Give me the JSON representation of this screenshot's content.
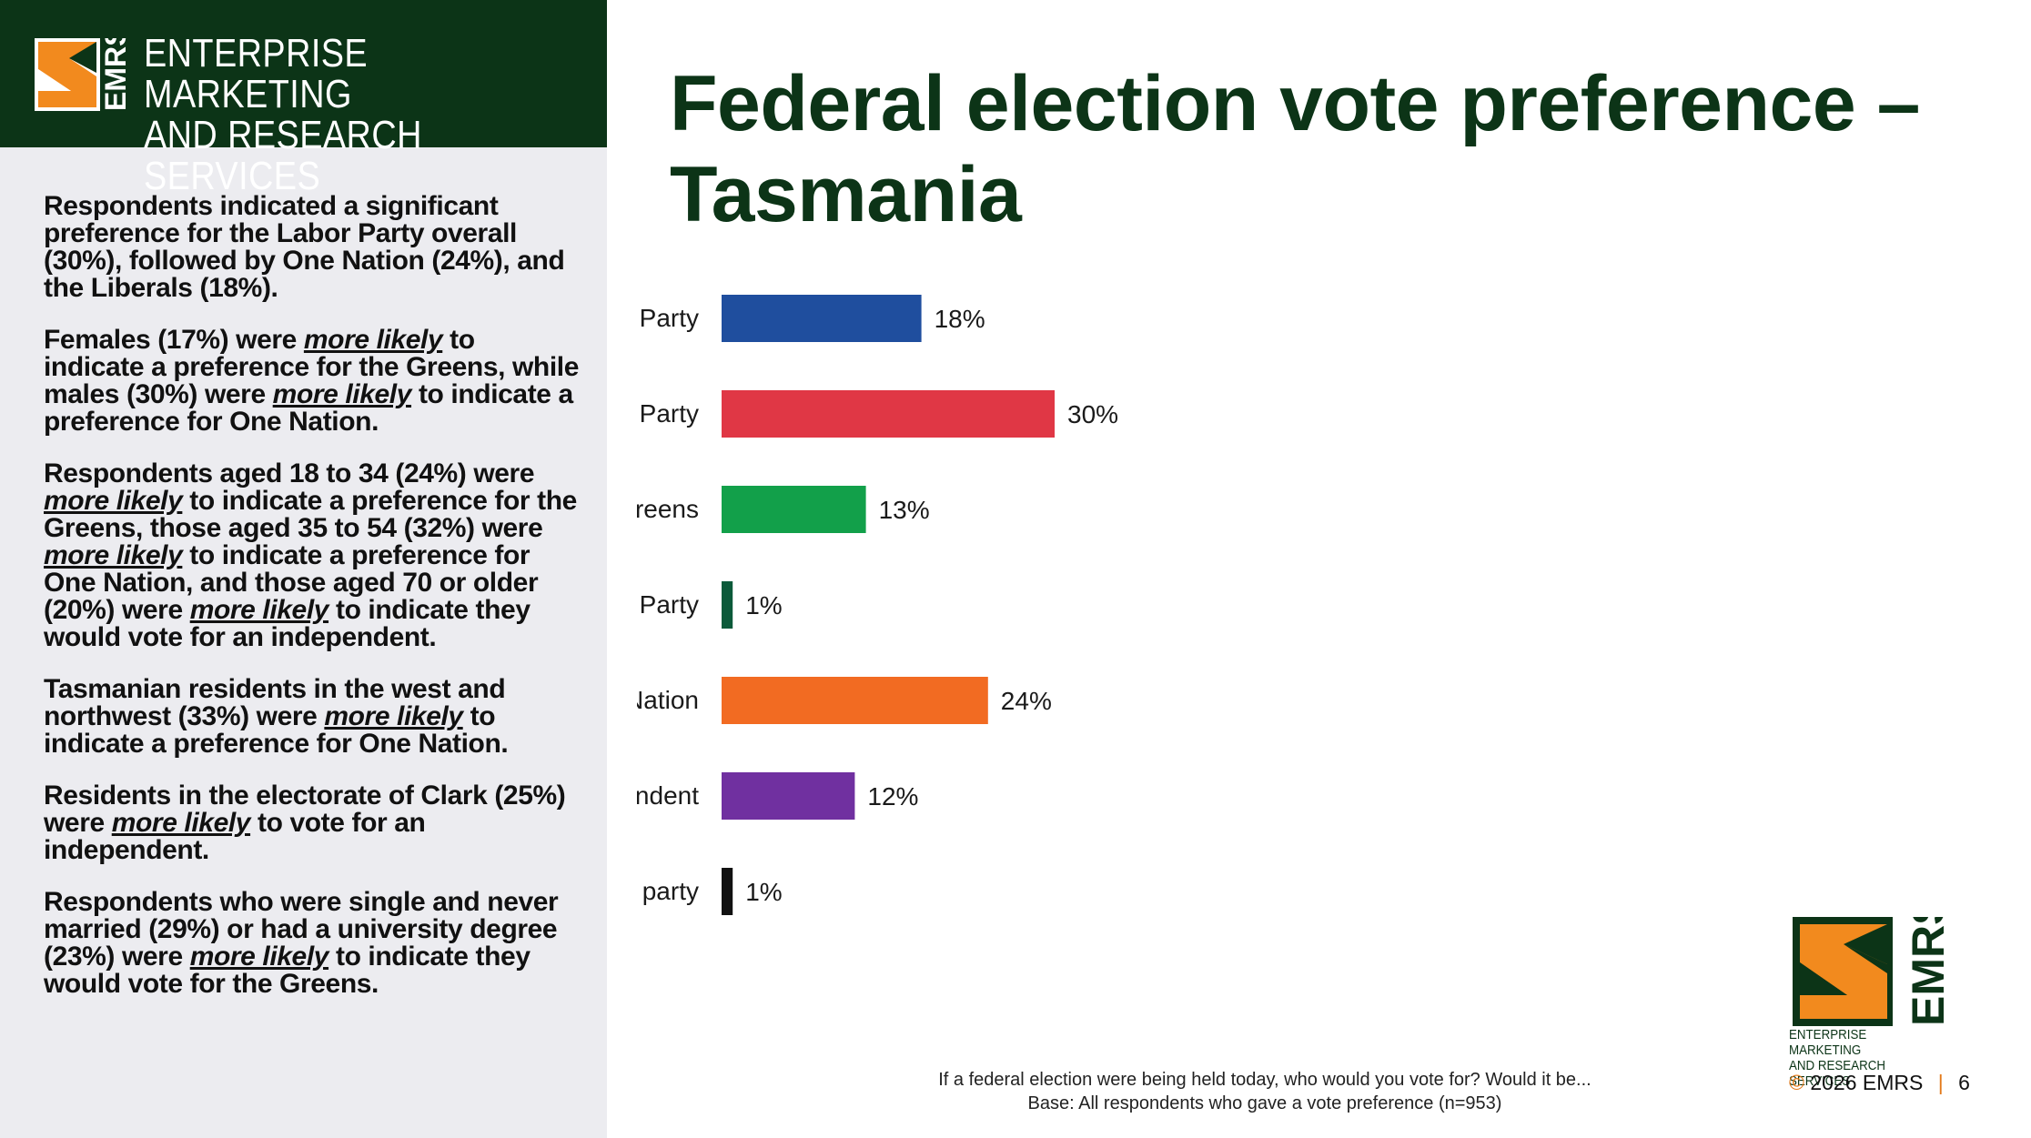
{
  "brand": {
    "name_line1": "ENTERPRISE MARKETING",
    "name_line2": "AND RESEARCH SERVICES",
    "abbr": "EMRS",
    "colors": {
      "dark_green": "#0c3417",
      "orange": "#f28a1e"
    }
  },
  "sidebar": {
    "paragraphs": [
      [
        {
          "t": "Respondents indicated a significant preference for the Labor Party overall (30%), followed by One Nation (24%), and the Liberals (18%)."
        }
      ],
      [
        {
          "t": "Females (17%) were "
        },
        {
          "t": "more likely",
          "em": true
        },
        {
          "t": " to indicate a preference for the Greens, while males (30%) were "
        },
        {
          "t": "more likely",
          "em": true
        },
        {
          "t": " to indicate a preference for One Nation."
        }
      ],
      [
        {
          "t": "Respondents aged 18 to 34 (24%) were "
        },
        {
          "t": "more likely",
          "em": true
        },
        {
          "t": " to indicate a preference for the Greens, those aged 35 to 54 (32%) were "
        },
        {
          "t": "more likely",
          "em": true
        },
        {
          "t": " to indicate a preference for One Nation, and those aged 70 or older (20%) were "
        },
        {
          "t": "more likely",
          "em": true
        },
        {
          "t": " to indicate they would vote for an independent."
        }
      ],
      [
        {
          "t": "Tasmanian residents in the west and northwest (33%) were "
        },
        {
          "t": "more likely",
          "em": true
        },
        {
          "t": " to indicate a preference for One Nation."
        }
      ],
      [
        {
          "t": "Residents in the electorate of Clark (25%) were "
        },
        {
          "t": "more likely",
          "em": true
        },
        {
          "t": " to vote for an independent."
        }
      ],
      [
        {
          "t": "Respondents who were single and never married (29%) or had a university degree (23%) were "
        },
        {
          "t": "more likely",
          "em": true
        },
        {
          "t": " to indicate they would vote for the Greens."
        }
      ]
    ]
  },
  "page": {
    "title": "Federal election vote preference – Tasmania"
  },
  "chart_data": {
    "type": "bar",
    "orientation": "horizontal",
    "categories": [
      "The Liberal Party",
      "The Labor Party",
      "The Greens",
      "The National Party",
      "Pauline Hanson's One Nation",
      "An Independent",
      "Some other minor party"
    ],
    "values": [
      18,
      30,
      13,
      1,
      24,
      12,
      1
    ],
    "value_labels": [
      "18%",
      "30%",
      "13%",
      "1%",
      "24%",
      "12%",
      "1%"
    ],
    "colors": [
      "#1f4e9e",
      "#e03745",
      "#12a04a",
      "#0c5a3a",
      "#f26b22",
      "#7030a0",
      "#111111"
    ],
    "xlim": [
      0,
      100
    ],
    "grid": false,
    "legend": "none"
  },
  "footnote": {
    "question": "If a federal election were being held today, who would you vote for? Would it be...",
    "base": "Base: All respondents who gave a vote preference (n=953)"
  },
  "footer": {
    "corner_name_line1": "ENTERPRISE MARKETING",
    "corner_name_line2": "AND RESEARCH SERVICES",
    "copyright_symbol": "©",
    "copyright_text": "2026 EMRS",
    "separator": "|",
    "page_number": "6"
  }
}
